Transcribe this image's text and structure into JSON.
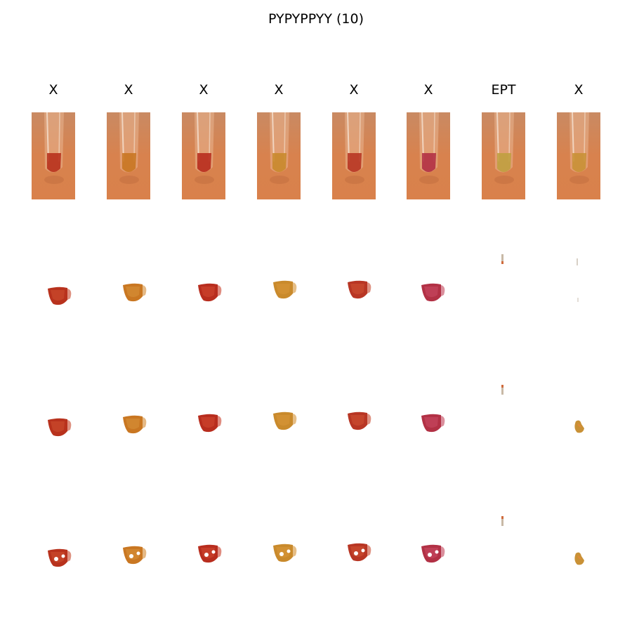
{
  "title": "PYPYPPYY (10)",
  "columns": [
    {
      "label": "X",
      "tint": "#c7462a",
      "liquid": "#b8321d"
    },
    {
      "label": "X",
      "tint": "#d38a33",
      "liquid": "#c97722"
    },
    {
      "label": "X",
      "tint": "#c9402b",
      "liquid": "#b82d1e"
    },
    {
      "label": "X",
      "tint": "#d59236",
      "liquid": "#c98a2c"
    },
    {
      "label": "X",
      "tint": "#c84a2e",
      "liquid": "#b83624"
    },
    {
      "label": "X",
      "tint": "#c2445a",
      "liquid": "#b23145"
    },
    {
      "label": "EPT",
      "tint": "#c9a64a",
      "liquid": "#c0a040"
    },
    {
      "label": "X",
      "tint": "#cf9a3e",
      "liquid": "#c99136"
    }
  ],
  "colors": {
    "background": "#ffffff",
    "photo_bg": "#d8824e",
    "glass": "#e9b48f"
  }
}
